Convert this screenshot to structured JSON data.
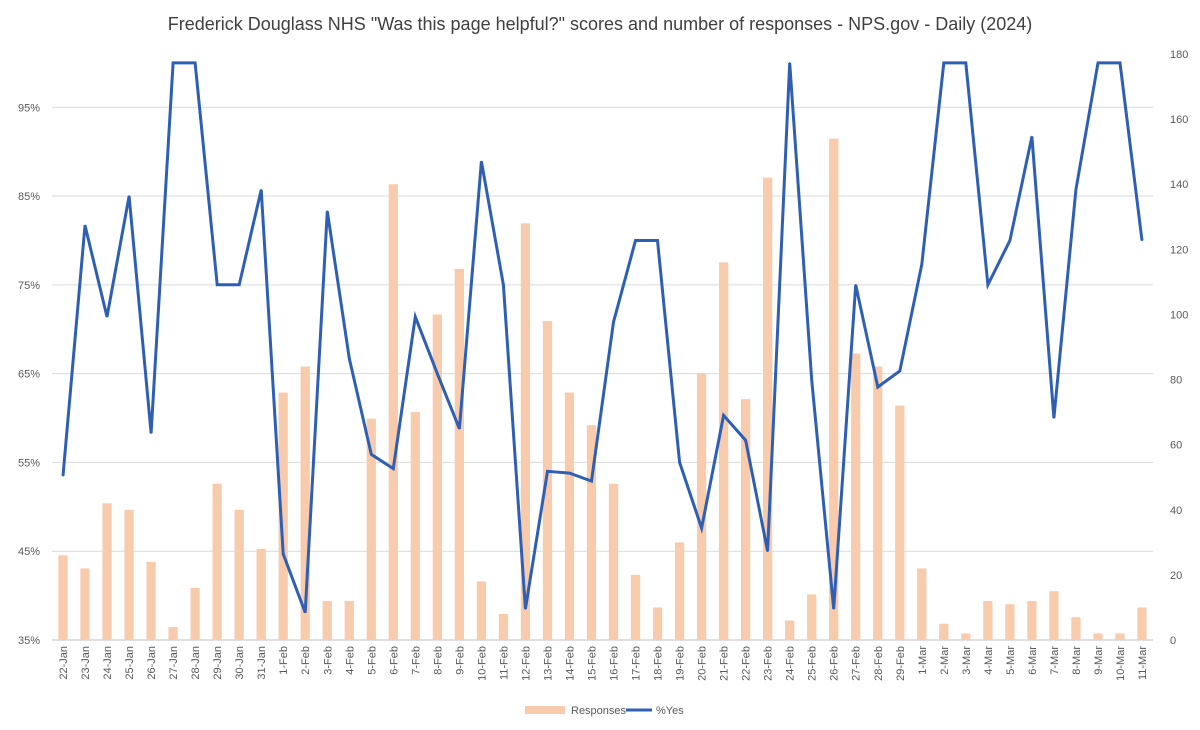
{
  "chart_data": {
    "type": "bar",
    "title": "Frederick Douglass NHS \"Was this page helpful?\" scores and number of responses - NPS.gov - Daily (2024)",
    "categories": [
      "22-Jan",
      "23-Jan",
      "24-Jan",
      "25-Jan",
      "26-Jan",
      "27-Jan",
      "28-Jan",
      "29-Jan",
      "30-Jan",
      "31-Jan",
      "1-Feb",
      "2-Feb",
      "3-Feb",
      "4-Feb",
      "5-Feb",
      "6-Feb",
      "7-Feb",
      "8-Feb",
      "9-Feb",
      "10-Feb",
      "11-Feb",
      "12-Feb",
      "13-Feb",
      "14-Feb",
      "15-Feb",
      "16-Feb",
      "17-Feb",
      "18-Feb",
      "19-Feb",
      "20-Feb",
      "21-Feb",
      "22-Feb",
      "23-Feb",
      "24-Feb",
      "25-Feb",
      "26-Feb",
      "27-Feb",
      "28-Feb",
      "29-Feb",
      "1-Mar",
      "2-Mar",
      "3-Mar",
      "4-Mar",
      "5-Mar",
      "6-Mar",
      "7-Mar",
      "8-Mar",
      "9-Mar",
      "10-Mar",
      "11-Mar"
    ],
    "series": [
      {
        "name": "Responses",
        "type": "bar",
        "axis": "right",
        "color": "#f8cbad",
        "values": [
          26,
          22,
          42,
          40,
          24,
          4,
          16,
          48,
          40,
          28,
          76,
          84,
          12,
          12,
          68,
          140,
          70,
          100,
          114,
          18,
          8,
          128,
          98,
          76,
          66,
          48,
          20,
          10,
          30,
          82,
          116,
          74,
          142,
          6,
          14,
          154,
          88,
          84,
          72,
          22,
          5,
          2,
          12,
          11,
          12,
          15,
          7,
          2,
          2,
          10
        ]
      },
      {
        "name": "%Yes",
        "type": "line",
        "axis": "left",
        "color": "#2f5fb3",
        "values": [
          53.5,
          81.7,
          71.4,
          85,
          58.3,
          100,
          100,
          75,
          75,
          85.7,
          44.7,
          38.1,
          83.3,
          66.7,
          55.9,
          54.3,
          71.4,
          65,
          58.8,
          88.9,
          75,
          38.5,
          54,
          53.8,
          52.9,
          70.8,
          80,
          80,
          55,
          47.6,
          60.3,
          57.5,
          45,
          100,
          64.3,
          38.5,
          75,
          63.5,
          65.3,
          77.3,
          100,
          100,
          75,
          80,
          91.7,
          60,
          85.7,
          100,
          100,
          80
        ]
      }
    ],
    "y_left": {
      "min": 35,
      "max": 101,
      "ticks": [
        "35%",
        "45%",
        "55%",
        "65%",
        "75%",
        "85%",
        "95%"
      ],
      "tick_values": [
        35,
        45,
        55,
        65,
        75,
        85,
        95
      ]
    },
    "y_right": {
      "min": 0,
      "max": 180,
      "ticks": [
        "0",
        "20",
        "40",
        "60",
        "80",
        "100",
        "120",
        "140",
        "160",
        "180"
      ],
      "tick_values": [
        0,
        20,
        40,
        60,
        80,
        100,
        120,
        140,
        160,
        180
      ]
    },
    "grid": true,
    "legend": {
      "position": "bottom",
      "entries": [
        "Responses",
        "%Yes"
      ]
    }
  }
}
